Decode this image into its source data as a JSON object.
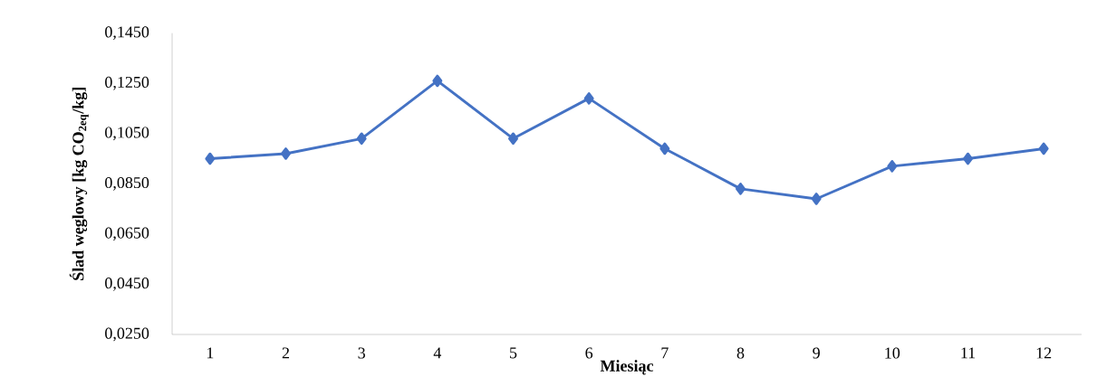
{
  "chart_data": {
    "type": "line",
    "xlabel": "Miesiąc",
    "ylabel": "Ślad węglowy [kg CO$_{2eq}$/kg]",
    "categories": [
      "1",
      "2",
      "3",
      "4",
      "5",
      "6",
      "7",
      "8",
      "9",
      "10",
      "11",
      "12"
    ],
    "series": [
      {
        "color": "#4472c4",
        "values": [
          0.095,
          0.097,
          0.103,
          0.126,
          0.103,
          0.119,
          0.099,
          0.083,
          0.079,
          0.092,
          0.095,
          0.099
        ]
      }
    ],
    "ylim": [
      0.025,
      0.145
    ],
    "yticks": [
      {
        "value": 0.025,
        "label": "0,0250"
      },
      {
        "value": 0.045,
        "label": "0,0450"
      },
      {
        "value": 0.065,
        "label": "0,0650"
      },
      {
        "value": 0.085,
        "label": "0,0850"
      },
      {
        "value": 0.105,
        "label": "0,1050"
      },
      {
        "value": 0.125,
        "label": "0,1250"
      },
      {
        "value": 0.145,
        "label": "0,1450"
      }
    ],
    "marker": "diamond",
    "line_style": "solid",
    "grid": false
  }
}
